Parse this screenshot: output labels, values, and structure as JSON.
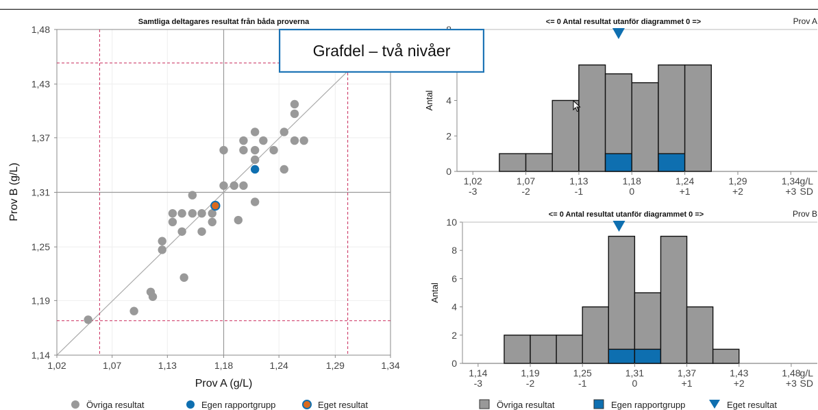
{
  "callout": {
    "text": "Grafdel – två nivåer"
  },
  "colors": {
    "other": "#999999",
    "own_group": "#0e6fb0",
    "own_result_fill": "#d96a1e",
    "limit_line": "#c8285a",
    "axis": "#555555",
    "grid": "#eeeeee"
  },
  "chart_data": [
    {
      "id": "scatter",
      "type": "scatter",
      "title": "Samtliga deltagares resultat från båda proverna",
      "xlabel": "Prov A (g/L)",
      "ylabel": "Prov B (g/L)",
      "xlim": [
        1.02,
        1.34
      ],
      "ylim": [
        1.14,
        1.48
      ],
      "x_ticks": [
        "1,02",
        "1,07",
        "1,13",
        "1,18",
        "1,24",
        "1,29",
        "1,34"
      ],
      "y_ticks": [
        "1,14",
        "1,19",
        "1,25",
        "1,31",
        "1,37",
        "1,43",
        "1,48"
      ],
      "x_tick_values": [
        1.02,
        1.073,
        1.126,
        1.18,
        1.233,
        1.287,
        1.34
      ],
      "y_tick_values": [
        1.14,
        1.197,
        1.253,
        1.31,
        1.367,
        1.423,
        1.48
      ],
      "target": {
        "x": 1.18,
        "y": 1.31
      },
      "limits_x": [
        1.061,
        1.299
      ],
      "limits_y": [
        1.176,
        1.445
      ],
      "legend": [
        "Övriga resultat",
        "Egen rapportgrupp",
        "Eget resultat"
      ],
      "points_other": [
        [
          1.05,
          1.177
        ],
        [
          1.094,
          1.186
        ],
        [
          1.11,
          1.206
        ],
        [
          1.112,
          1.201
        ],
        [
          1.121,
          1.25
        ],
        [
          1.121,
          1.259
        ],
        [
          1.131,
          1.279
        ],
        [
          1.131,
          1.288
        ],
        [
          1.14,
          1.288
        ],
        [
          1.14,
          1.269
        ],
        [
          1.142,
          1.221
        ],
        [
          1.15,
          1.288
        ],
        [
          1.15,
          1.307
        ],
        [
          1.159,
          1.288
        ],
        [
          1.159,
          1.269
        ],
        [
          1.169,
          1.288
        ],
        [
          1.169,
          1.279
        ],
        [
          1.18,
          1.317
        ],
        [
          1.18,
          1.354
        ],
        [
          1.19,
          1.317
        ],
        [
          1.194,
          1.281
        ],
        [
          1.199,
          1.317
        ],
        [
          1.199,
          1.354
        ],
        [
          1.199,
          1.364
        ],
        [
          1.21,
          1.373
        ],
        [
          1.21,
          1.354
        ],
        [
          1.21,
          1.344
        ],
        [
          1.21,
          1.3
        ],
        [
          1.218,
          1.364
        ],
        [
          1.228,
          1.354
        ],
        [
          1.238,
          1.373
        ],
        [
          1.238,
          1.334
        ],
        [
          1.248,
          1.392
        ],
        [
          1.248,
          1.402
        ],
        [
          1.248,
          1.364
        ],
        [
          1.257,
          1.364
        ]
      ],
      "points_own_group": [
        [
          1.21,
          1.334
        ]
      ],
      "own_result": [
        1.172,
        1.296
      ]
    },
    {
      "id": "hist-a",
      "type": "bar",
      "title": "<= 0 Antal resultat utanför diagrammet 0 =>",
      "sample_label": "Prov A",
      "ylabel": "Antal",
      "ylim": [
        0,
        8
      ],
      "y_ticks": [
        "0",
        "2",
        "4",
        "6",
        "8"
      ],
      "x_ticks": [
        "1,02",
        "1,07",
        "1,13",
        "1,18",
        "1,24",
        "1,29",
        "1,34"
      ],
      "x_sd_ticks": [
        "-3",
        "-2",
        "-1",
        "0",
        "+1",
        "+2",
        "+3"
      ],
      "x_unit": "g/L",
      "sd_unit": "SD",
      "bin_edges_sd": [
        -2.5,
        -2,
        -1.5,
        -1,
        -0.5,
        0,
        0.5,
        1,
        1.5
      ],
      "counts_total": [
        1,
        1,
        4,
        6,
        5.5,
        5,
        6,
        6
      ],
      "counts_own_group": [
        0,
        0,
        0,
        0,
        1,
        0,
        1,
        0
      ],
      "own_result_sd": -0.25,
      "legend": [
        "Övriga resultat",
        "Egen rapportgrupp",
        "Eget resultat"
      ]
    },
    {
      "id": "hist-b",
      "type": "bar",
      "title": "<= 0 Antal resultat utanför diagrammet 0 =>",
      "sample_label": "Prov B",
      "ylabel": "Antal",
      "ylim": [
        0,
        10
      ],
      "y_ticks": [
        "0",
        "2",
        "4",
        "6",
        "8",
        "10"
      ],
      "x_ticks": [
        "1,14",
        "1,19",
        "1,25",
        "1,31",
        "1,37",
        "1,43",
        "1,48"
      ],
      "x_sd_ticks": [
        "-3",
        "-2",
        "-1",
        "0",
        "+1",
        "+2",
        "+3"
      ],
      "x_unit": "g/L",
      "sd_unit": "SD",
      "bin_edges_sd": [
        -2.5,
        -2,
        -1.5,
        -1,
        -0.5,
        0,
        0.5,
        1,
        1.5,
        2
      ],
      "counts_total": [
        2,
        2,
        2,
        4,
        9,
        5,
        9,
        4,
        1
      ],
      "counts_own_group": [
        0,
        0,
        0,
        0,
        1,
        1,
        0,
        0,
        0
      ],
      "own_result_sd": -0.3,
      "legend": [
        "Övriga resultat",
        "Egen rapportgrupp",
        "Eget resultat"
      ]
    }
  ]
}
